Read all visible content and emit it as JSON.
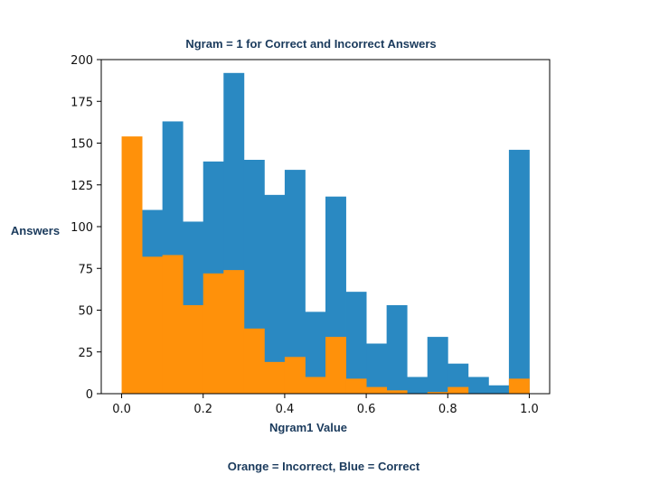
{
  "chart_data": {
    "type": "bar",
    "title": "Ngram = 1 for Correct and Incorrect Answers",
    "xlabel": "Ngram1 Value",
    "ylabel": "Answers",
    "caption": "Orange = Incorrect, Blue = Correct",
    "xlim": [
      -0.05,
      1.05
    ],
    "ylim": [
      0,
      200
    ],
    "xticks": [
      "0.0",
      "0.2",
      "0.4",
      "0.6",
      "0.8",
      "1.0"
    ],
    "yticks": [
      "0",
      "25",
      "50",
      "75",
      "100",
      "125",
      "150",
      "175",
      "200"
    ],
    "grid": false,
    "bin_edges": [
      0.0,
      0.05,
      0.1,
      0.15,
      0.2,
      0.25,
      0.3,
      0.35,
      0.4,
      0.45,
      0.5,
      0.55,
      0.6,
      0.65,
      0.7,
      0.75,
      0.8,
      0.85,
      0.9,
      0.95,
      1.0
    ],
    "series": [
      {
        "color": "#2a89c2",
        "values": [
          0,
          110,
          163,
          103,
          139,
          192,
          140,
          119,
          134,
          49,
          118,
          61,
          30,
          53,
          10,
          34,
          18,
          10,
          5,
          146
        ]
      },
      {
        "color": "#ff910a",
        "values": [
          154,
          82,
          83,
          53,
          72,
          74,
          39,
          19,
          22,
          10,
          34,
          9,
          4,
          2,
          0,
          1,
          4,
          0,
          0,
          9
        ]
      }
    ]
  }
}
